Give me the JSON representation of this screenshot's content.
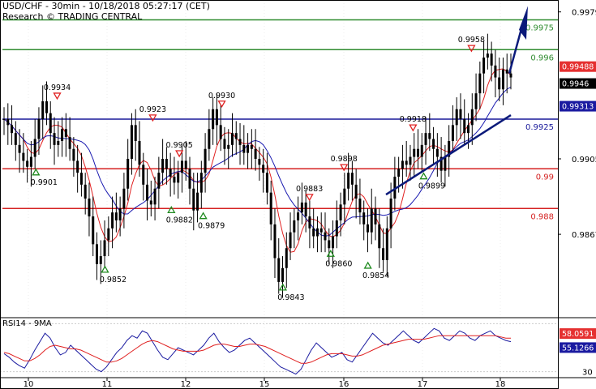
{
  "header": {
    "title": "USD/CHF - 30min - 10/18/2018 05:27:17 (CET)",
    "source": "Research © TRADING CENTRAL"
  },
  "rsi_panel": {
    "label": "RSI14 - 9MA"
  },
  "colors": {
    "price": "#000000",
    "ma_red": "#e02020",
    "ma_blue": "#1a1ab0",
    "resistance_green": "#2e8b2e",
    "support_red": "#d42020",
    "pivot_blue": "#1a1a9a",
    "arrow": "#0b1a7a",
    "label_bg_red": "#e53030",
    "label_bg_black": "#000000",
    "label_bg_blue": "#1a1aa0"
  },
  "chart_data": {
    "type": "candlestick",
    "symbol": "USD/CHF",
    "timeframe": "30min",
    "x_ticks": [
      "10",
      "11",
      "12",
      "15",
      "16",
      "17",
      "18"
    ],
    "y_ticks": [
      0.9979,
      0.9946,
      0.9905,
      0.9867,
      30
    ],
    "ylim": [
      0.9825,
      0.9985
    ],
    "levels": [
      {
        "value": 0.9975,
        "label": "0.9975",
        "color": "green"
      },
      {
        "value": 0.996,
        "label": "0.996",
        "color": "green"
      },
      {
        "value": 0.99313,
        "label": "0.99313",
        "color": "blue-label"
      },
      {
        "value": 0.9925,
        "label": "0.9925",
        "color": "blue"
      },
      {
        "value": 0.99,
        "label": "0.99",
        "color": "red"
      },
      {
        "value": 0.988,
        "label": "0.988",
        "color": "red"
      }
    ],
    "price_labels": [
      {
        "value": 0.99488,
        "label": "0.99488",
        "style": "red"
      },
      {
        "value": 0.9946,
        "label": "0.9946",
        "style": "black"
      }
    ],
    "swing_points": [
      {
        "x": 0.06,
        "value": 0.9901,
        "type": "low",
        "label": "0.9901"
      },
      {
        "x": 0.1,
        "value": 0.9934,
        "type": "high",
        "label": "0.9934"
      },
      {
        "x": 0.19,
        "value": 0.9852,
        "type": "low",
        "label": "0.9852"
      },
      {
        "x": 0.28,
        "value": 0.9923,
        "type": "high",
        "label": "0.9923"
      },
      {
        "x": 0.315,
        "value": 0.9882,
        "type": "low",
        "label": "0.9882"
      },
      {
        "x": 0.33,
        "value": 0.9905,
        "type": "high",
        "label": "0.9905"
      },
      {
        "x": 0.375,
        "value": 0.9879,
        "type": "low",
        "label": "0.9879"
      },
      {
        "x": 0.41,
        "value": 0.993,
        "type": "high",
        "label": "0.9930"
      },
      {
        "x": 0.525,
        "value": 0.9843,
        "type": "low",
        "label": "0.9843"
      },
      {
        "x": 0.575,
        "value": 0.9883,
        "type": "high",
        "label": "0.9883"
      },
      {
        "x": 0.615,
        "value": 0.986,
        "type": "low",
        "label": "0.9860"
      },
      {
        "x": 0.64,
        "value": 0.9898,
        "type": "high",
        "label": "0.9898"
      },
      {
        "x": 0.685,
        "value": 0.9854,
        "type": "low",
        "label": "0.9854"
      },
      {
        "x": 0.77,
        "value": 0.9918,
        "type": "high",
        "label": "0.9918"
      },
      {
        "x": 0.79,
        "value": 0.9899,
        "type": "low",
        "label": "0.9899"
      },
      {
        "x": 0.88,
        "value": 0.9958,
        "type": "high",
        "label": "0.9958"
      }
    ],
    "close_series": [
      0.9925,
      0.9922,
      0.9918,
      0.9912,
      0.9908,
      0.9904,
      0.9901,
      0.9906,
      0.9915,
      0.9925,
      0.9934,
      0.9928,
      0.9918,
      0.9912,
      0.9914,
      0.992,
      0.9916,
      0.991,
      0.9904,
      0.9898,
      0.9892,
      0.9885,
      0.9876,
      0.9862,
      0.9852,
      0.9856,
      0.9864,
      0.987,
      0.9878,
      0.9874,
      0.988,
      0.989,
      0.9905,
      0.9922,
      0.9914,
      0.9902,
      0.9892,
      0.9884,
      0.9882,
      0.989,
      0.9898,
      0.9905,
      0.99,
      0.9896,
      0.9893,
      0.9898,
      0.9904,
      0.99,
      0.989,
      0.9879,
      0.9888,
      0.9898,
      0.991,
      0.992,
      0.993,
      0.9922,
      0.9915,
      0.991,
      0.9912,
      0.9918,
      0.9915,
      0.9912,
      0.9908,
      0.9912,
      0.991,
      0.9905,
      0.9902,
      0.9898,
      0.9888,
      0.9872,
      0.9855,
      0.9843,
      0.985,
      0.986,
      0.9868,
      0.9874,
      0.9878,
      0.9883,
      0.9876,
      0.987,
      0.9866,
      0.987,
      0.9868,
      0.9864,
      0.986,
      0.9866,
      0.9874,
      0.9882,
      0.989,
      0.9898,
      0.9892,
      0.9885,
      0.9878,
      0.9872,
      0.9868,
      0.988,
      0.9872,
      0.986,
      0.9854,
      0.987,
      0.9885,
      0.9896,
      0.99,
      0.9904,
      0.9902,
      0.9906,
      0.991,
      0.9906,
      0.9912,
      0.9918,
      0.9915,
      0.991,
      0.9906,
      0.9899,
      0.9906,
      0.9914,
      0.9922,
      0.993,
      0.9925,
      0.9918,
      0.9922,
      0.993,
      0.9938,
      0.9948,
      0.9956,
      0.9958,
      0.9952,
      0.9946,
      0.994,
      0.995,
      0.9948,
      0.9946
    ]
  },
  "rsi_data": {
    "type": "line",
    "ylim": [
      25,
      75
    ],
    "y_ticks": [
      30
    ],
    "labels": [
      {
        "value": 58.0591,
        "label": "58.0591",
        "style": "red"
      },
      {
        "value": 55.1266,
        "label": "55.1266",
        "style": "blue"
      }
    ],
    "rsi_series": [
      45,
      42,
      38,
      35,
      33,
      40,
      48,
      55,
      62,
      58,
      50,
      44,
      46,
      52,
      48,
      44,
      40,
      36,
      32,
      30,
      34,
      40,
      46,
      50,
      56,
      60,
      58,
      64,
      62,
      55,
      48,
      42,
      40,
      45,
      50,
      48,
      46,
      44,
      48,
      52,
      58,
      62,
      55,
      50,
      46,
      48,
      52,
      56,
      58,
      54,
      50,
      46,
      42,
      38,
      34,
      32,
      30,
      28,
      32,
      40,
      48,
      54,
      50,
      46,
      42,
      44,
      46,
      40,
      38,
      44,
      50,
      56,
      62,
      58,
      54,
      52,
      56,
      60,
      64,
      60,
      56,
      54,
      58,
      62,
      66,
      64,
      58,
      56,
      60,
      64,
      62,
      58,
      56,
      60,
      62,
      64,
      60,
      58,
      56,
      55
    ],
    "ma_series": [
      46,
      45,
      43,
      41,
      39,
      39,
      41,
      44,
      48,
      51,
      52,
      51,
      50,
      49,
      49,
      48,
      46,
      44,
      42,
      40,
      38,
      38,
      39,
      41,
      44,
      47,
      50,
      53,
      55,
      56,
      55,
      53,
      51,
      49,
      48,
      47,
      47,
      47,
      47,
      48,
      50,
      52,
      53,
      53,
      52,
      51,
      51,
      52,
      53,
      53,
      52,
      51,
      49,
      47,
      45,
      43,
      41,
      39,
      37,
      37,
      38,
      40,
      42,
      44,
      45,
      45,
      45,
      44,
      43,
      43,
      44,
      46,
      48,
      50,
      52,
      53,
      54,
      55,
      56,
      57,
      57,
      57,
      57,
      58,
      59,
      60,
      60,
      60,
      60,
      60,
      60,
      60,
      60,
      60,
      60,
      60,
      60,
      59,
      58,
      58
    ]
  }
}
